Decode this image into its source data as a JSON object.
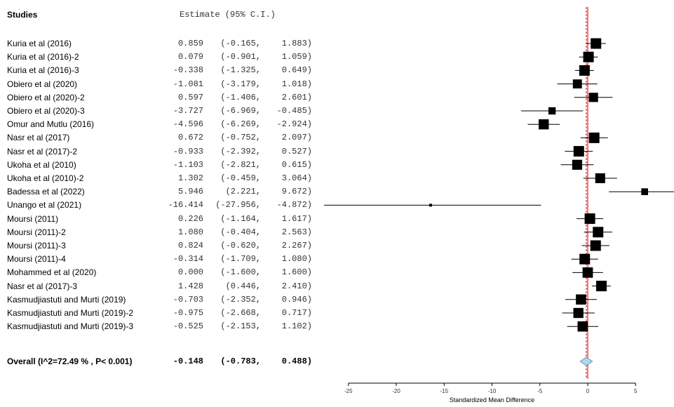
{
  "header": {
    "studies_label": "Studies",
    "estimate_label": "Estimate (95% C.I.)"
  },
  "chart_data": {
    "type": "forest",
    "title": "",
    "xlabel": "Standardized Mean Difference",
    "xlim": [
      -25,
      5
    ],
    "xticks": [
      -25,
      -20,
      -15,
      -10,
      -5,
      0,
      5
    ],
    "xtick_labels": [
      "-25",
      "-20",
      "-15",
      "-10",
      "-5",
      "0",
      "5"
    ],
    "studies": [
      {
        "name": "Kuria et al (2016)",
        "est": 0.859,
        "lo": -0.165,
        "hi": 1.883,
        "est_text": "0.859",
        "lo_text": "(-0.165,",
        "hi_text": "1.883)"
      },
      {
        "name": "Kuria et al (2016)-2",
        "est": 0.079,
        "lo": -0.901,
        "hi": 1.059,
        "est_text": "0.079",
        "lo_text": "(-0.901,",
        "hi_text": "1.059)"
      },
      {
        "name": "Kuria et al (2016)-3",
        "est": -0.338,
        "lo": -1.325,
        "hi": 0.649,
        "est_text": "-0.338",
        "lo_text": "(-1.325,",
        "hi_text": "0.649)"
      },
      {
        "name": "Obiero et al (2020)",
        "est": -1.081,
        "lo": -3.179,
        "hi": 1.018,
        "est_text": "-1.081",
        "lo_text": "(-3.179,",
        "hi_text": "1.018)"
      },
      {
        "name": "Obiero et al (2020)-2",
        "est": 0.597,
        "lo": -1.406,
        "hi": 2.601,
        "est_text": "0.597",
        "lo_text": "(-1.406,",
        "hi_text": "2.601)"
      },
      {
        "name": "Obiero et al (2020)-3",
        "est": -3.727,
        "lo": -6.969,
        "hi": -0.485,
        "est_text": "-3.727",
        "lo_text": "(-6.969,",
        "hi_text": "-0.485)"
      },
      {
        "name": "Omur and Mutlu (2016)",
        "est": -4.596,
        "lo": -6.269,
        "hi": -2.924,
        "est_text": "-4.596",
        "lo_text": "(-6.269,",
        "hi_text": "-2.924)"
      },
      {
        "name": "Nasr et al (2017)",
        "est": 0.672,
        "lo": -0.752,
        "hi": 2.097,
        "est_text": "0.672",
        "lo_text": "(-0.752,",
        "hi_text": "2.097)"
      },
      {
        "name": "Nasr et al (2017)-2",
        "est": -0.933,
        "lo": -2.392,
        "hi": 0.527,
        "est_text": "-0.933",
        "lo_text": "(-2.392,",
        "hi_text": "0.527)"
      },
      {
        "name": "Ukoha et al (2010)",
        "est": -1.103,
        "lo": -2.821,
        "hi": 0.615,
        "est_text": "-1.103",
        "lo_text": "(-2.821,",
        "hi_text": "0.615)"
      },
      {
        "name": "Ukoha et al (2010)-2",
        "est": 1.302,
        "lo": -0.459,
        "hi": 3.064,
        "est_text": "1.302",
        "lo_text": "(-0.459,",
        "hi_text": "3.064)"
      },
      {
        "name": "Badessa et al (2022)",
        "est": 5.946,
        "lo": 2.221,
        "hi": 9.672,
        "est_text": "5.946",
        "lo_text": "(2.221,",
        "hi_text": "9.672)"
      },
      {
        "name": "Unango et al (2021)",
        "est": -16.414,
        "lo": -27.956,
        "hi": -4.872,
        "est_text": "-16.414",
        "lo_text": "(-27.956,",
        "hi_text": "-4.872)"
      },
      {
        "name": "Moursi (2011)",
        "est": 0.226,
        "lo": -1.164,
        "hi": 1.617,
        "est_text": "0.226",
        "lo_text": "(-1.164,",
        "hi_text": "1.617)"
      },
      {
        "name": "Moursi (2011)-2",
        "est": 1.08,
        "lo": -0.404,
        "hi": 2.563,
        "est_text": "1.080",
        "lo_text": "(-0.404,",
        "hi_text": "2.563)"
      },
      {
        "name": "Moursi (2011)-3",
        "est": 0.824,
        "lo": -0.62,
        "hi": 2.267,
        "est_text": "0.824",
        "lo_text": "(-0.620,",
        "hi_text": "2.267)"
      },
      {
        "name": "Moursi (2011)-4",
        "est": -0.314,
        "lo": -1.709,
        "hi": 1.08,
        "est_text": "-0.314",
        "lo_text": "(-1.709,",
        "hi_text": "1.080)"
      },
      {
        "name": "Mohammed et al (2020)",
        "est": 0.0,
        "lo": -1.6,
        "hi": 1.6,
        "est_text": "0.000",
        "lo_text": "(-1.600,",
        "hi_text": "1.600)"
      },
      {
        "name": "Nasr et al (2017)-3",
        "est": 1.428,
        "lo": 0.446,
        "hi": 2.41,
        "est_text": "1.428",
        "lo_text": "(0.446,",
        "hi_text": "2.410)"
      },
      {
        "name": "Kasmudjiastuti and Murti (2019)",
        "est": -0.703,
        "lo": -2.352,
        "hi": 0.946,
        "est_text": "-0.703",
        "lo_text": "(-2.352,",
        "hi_text": "0.946)"
      },
      {
        "name": "Kasmudjiastuti and Murti (2019)-2",
        "est": -0.975,
        "lo": -2.668,
        "hi": 0.717,
        "est_text": "-0.975",
        "lo_text": "(-2.668,",
        "hi_text": "0.717)"
      },
      {
        "name": "Kasmudjiastuti and Murti (2019)-3",
        "est": -0.525,
        "lo": -2.153,
        "hi": 1.102,
        "est_text": "-0.525",
        "lo_text": "(-2.153,",
        "hi_text": "1.102)"
      }
    ],
    "overall": {
      "name": "Overall (I^2=72.49 % , P< 0.001)",
      "est": -0.148,
      "lo": -0.783,
      "hi": 0.488,
      "est_text": "-0.148",
      "lo_text": "(-0.783,",
      "hi_text": "0.488)"
    },
    "colors": {
      "marker": "#000000",
      "diamond_fill": "#add8e6",
      "null_line": "#cc0000",
      "overall_line": "#cc0000"
    }
  }
}
